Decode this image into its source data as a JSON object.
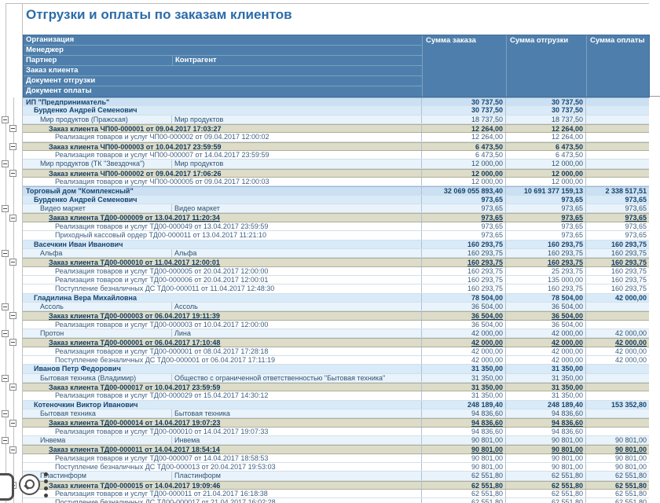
{
  "title": "Отгрузки и оплаты по заказам клиентов",
  "colors": {
    "header_bg": "#4E7FAC",
    "title_text": "#2B6CA9",
    "org_row_bg": "#CBE0F2",
    "manager_row_bg": "#D9EAF8",
    "partner_row_bg": "#E9F3FB",
    "order_row_bg": "#DCDCC8"
  },
  "header": {
    "rows": [
      {
        "label": "Организация"
      },
      {
        "label": "Менеджер"
      },
      {
        "label": "Партнер",
        "label2": "Контрагент"
      },
      {
        "label": "Заказ клиента"
      },
      {
        "label": "Документ отгрузки"
      },
      {
        "label": "Документ оплаты"
      }
    ],
    "value_columns": [
      "Сумма заказа",
      "Сумма отгрузки",
      "Сумма оплаты"
    ]
  },
  "overlay_icons": [
    "window-edge-button",
    "magnifier-button",
    "kebab-menu"
  ],
  "rows": [
    {
      "t": "org",
      "a": "ИП \"Предприниматель\"",
      "v": [
        "30 737,50",
        "30 737,50",
        ""
      ]
    },
    {
      "t": "mgr",
      "a": "Бурденко Андрей Семенович",
      "v": [
        "30 737,50",
        "30 737,50",
        ""
      ]
    },
    {
      "t": "prt",
      "a": "Мир продуктов (Пражская)",
      "b": "Мир продуктов",
      "v": [
        "18 737,50",
        "18 737,50",
        ""
      ]
    },
    {
      "t": "ord",
      "a": "Заказ клиента ЧП00-000001 от 09.04.2017 17:03:27",
      "v": [
        "12 264,00",
        "12 264,00",
        ""
      ]
    },
    {
      "t": "det",
      "a": "Реализация товаров и услуг ЧП00-000002 от 09.04.2017 12:00:02",
      "v": [
        "12 264,00",
        "12 264,00",
        ""
      ]
    },
    {
      "t": "ord",
      "a": "Заказ клиента ЧП00-000003 от 10.04.2017 23:59:59",
      "v": [
        "6 473,50",
        "6 473,50",
        ""
      ]
    },
    {
      "t": "det",
      "a": "Реализация товаров и услуг ЧП00-000007 от 14.04.2017 23:59:59",
      "v": [
        "6 473,50",
        "6 473,50",
        ""
      ]
    },
    {
      "t": "prt",
      "a": "Мир продуктов (ТК \"Звездочка\")",
      "b": "Мир продуктов",
      "v": [
        "12 000,00",
        "12 000,00",
        ""
      ]
    },
    {
      "t": "ord",
      "a": "Заказ клиента ЧП00-000002 от 09.04.2017 17:06:26",
      "v": [
        "12 000,00",
        "12 000,00",
        ""
      ]
    },
    {
      "t": "det",
      "a": "Реализация товаров и услуг ЧП00-000005 от 09.04.2017 12:00:03",
      "v": [
        "12 000,00",
        "12 000,00",
        ""
      ]
    },
    {
      "t": "org",
      "a": "Торговый дом \"Комплексный\"",
      "v": [
        "32 069 055 893,40",
        "10 691 377 159,13",
        "2 338 517,51"
      ]
    },
    {
      "t": "mgr",
      "a": "Бурденко Андрей Семенович",
      "v": [
        "973,65",
        "973,65",
        "973,65"
      ]
    },
    {
      "t": "prt",
      "a": "Видео маркет",
      "b": "Видео маркет",
      "v": [
        "973,65",
        "973,65",
        "973,65"
      ]
    },
    {
      "t": "ord",
      "a": "Заказ клиента ТД00-000009 от 13.04.2017 11:20:34",
      "v": [
        "973,65",
        "973,65",
        "973,65"
      ]
    },
    {
      "t": "det",
      "a": "Реализация товаров и услуг ТД00-000049 от 13.04.2017 23:59:59",
      "v": [
        "973,65",
        "973,65",
        "973,65"
      ]
    },
    {
      "t": "det",
      "a": "Приходный кассовый ордер ТД00-000011 от 13.04.2017 11:21:10",
      "v": [
        "973,65",
        "973,65",
        "973,65"
      ]
    },
    {
      "t": "mgr",
      "a": "Васечкин Иван Иванович",
      "v": [
        "160 293,75",
        "160 293,75",
        "160 293,75"
      ]
    },
    {
      "t": "prt",
      "a": "Альфа",
      "b": "Альфа",
      "v": [
        "160 293,75",
        "160 293,75",
        "160 293,75"
      ]
    },
    {
      "t": "ord",
      "a": "Заказ клиента ТД00-000010 от 11.04.2017 12:00:01",
      "v": [
        "160 293,75",
        "160 293,75",
        "160 293,75"
      ]
    },
    {
      "t": "det",
      "a": "Реализация товаров и услуг ТД00-000005 от 20.04.2017 12:00:00",
      "v": [
        "160 293,75",
        "25 293,75",
        "160 293,75"
      ]
    },
    {
      "t": "det",
      "a": "Реализация товаров и услуг ТД00-000006 от 20.04.2017 12:00:01",
      "v": [
        "160 293,75",
        "135 000,00",
        "160 293,75"
      ]
    },
    {
      "t": "det",
      "a": "Поступление безналичных ДС ТД00-000011 от 11.04.2017 12:48:30",
      "v": [
        "160 293,75",
        "160 293,75",
        "160 293,75"
      ]
    },
    {
      "t": "mgr",
      "a": "Гладилина Вера Михайловна",
      "v": [
        "78 504,00",
        "78 504,00",
        "42 000,00"
      ]
    },
    {
      "t": "prt",
      "a": "Ассоль",
      "b": "Ассоль",
      "v": [
        "36 504,00",
        "36 504,00",
        ""
      ]
    },
    {
      "t": "ord",
      "a": "Заказ клиента ТД00-000003 от 06.04.2017 19:11:39",
      "v": [
        "36 504,00",
        "36 504,00",
        ""
      ]
    },
    {
      "t": "det",
      "a": "Реализация товаров и услуг ТД00-000003 от 10.04.2017 12:00:00",
      "v": [
        "36 504,00",
        "36 504,00",
        ""
      ]
    },
    {
      "t": "prt",
      "a": "Протон",
      "b": "Лина",
      "v": [
        "42 000,00",
        "42 000,00",
        "42 000,00"
      ]
    },
    {
      "t": "ord",
      "a": "Заказ клиента ТД00-000001 от 06.04.2017 17:10:48",
      "v": [
        "42 000,00",
        "42 000,00",
        "42 000,00"
      ]
    },
    {
      "t": "det",
      "a": "Реализация товаров и услуг ТД00-000001 от 08.04.2017 17:28:18",
      "v": [
        "42 000,00",
        "42 000,00",
        "42 000,00"
      ]
    },
    {
      "t": "det",
      "a": "Поступление безналичных ДС ТД00-000001 от 06.04.2017 17:11:19",
      "v": [
        "42 000,00",
        "42 000,00",
        "42 000,00"
      ]
    },
    {
      "t": "mgr",
      "a": "Иванов Петр Федорович",
      "v": [
        "31 350,00",
        "31 350,00",
        ""
      ]
    },
    {
      "t": "prt",
      "a": "Бытовая техника (Владимир)",
      "b": "Общество с ограниченной ответственностью \"Бытовая техника\"",
      "v": [
        "31 350,00",
        "31 350,00",
        ""
      ]
    },
    {
      "t": "ord",
      "a": "Заказ клиента ТД00-000017 от 10.04.2017 23:59:59",
      "v": [
        "31 350,00",
        "31 350,00",
        ""
      ]
    },
    {
      "t": "det",
      "a": "Реализация товаров и услуг ТД00-000029 от 15.04.2017 14:30:12",
      "v": [
        "31 350,00",
        "31 350,00",
        ""
      ]
    },
    {
      "t": "mgr",
      "a": "Котеночкин Виктор Иванович",
      "v": [
        "248 189,40",
        "248 189,40",
        "153 352,80"
      ]
    },
    {
      "t": "prt",
      "a": "Бытовая техника",
      "b": "Бытовая техника",
      "v": [
        "94 836,60",
        "94 836,60",
        ""
      ]
    },
    {
      "t": "ord",
      "a": "Заказ клиента ТД00-000014 от 14.04.2017 19:07:23",
      "v": [
        "94 836,60",
        "94 836,60",
        ""
      ]
    },
    {
      "t": "det",
      "a": "Реализация товаров и услуг ТД00-000010 от 14.04.2017 19:07:33",
      "v": [
        "94 836,60",
        "94 836,60",
        ""
      ]
    },
    {
      "t": "prt",
      "a": "Инвема",
      "b": "Инвема",
      "v": [
        "90 801,00",
        "90 801,00",
        "90 801,00"
      ]
    },
    {
      "t": "ord",
      "a": "Заказ клиента ТД00-000011 от 14.04.2017 18:54:14",
      "v": [
        "90 801,00",
        "90 801,00",
        "90 801,00"
      ]
    },
    {
      "t": "det",
      "a": "Реализация товаров и услуг ТД00-000007 от 14.04.2017 18:58:53",
      "v": [
        "90 801,00",
        "90 801,00",
        "90 801,00"
      ]
    },
    {
      "t": "det",
      "a": "Поступление безналичных ДС ТД00-000013 от 20.04.2017 19:53:03",
      "v": [
        "90 801,00",
        "90 801,00",
        "90 801,00"
      ]
    },
    {
      "t": "prt",
      "a": "Пластинформ",
      "b": "Пластинформ",
      "v": [
        "62 551,80",
        "62 551,80",
        "62 551,80"
      ]
    },
    {
      "t": "ord",
      "a": "Заказ клиента ТД00-000015 от 14.04.2017 19:09:46",
      "v": [
        "62 551,80",
        "62 551,80",
        "62 551,80"
      ]
    },
    {
      "t": "det",
      "a": "Реализация товаров и услуг ТД00-000011 от 21.04.2017 16:18:38",
      "v": [
        "62 551,80",
        "62 551,80",
        "62 551,80"
      ]
    },
    {
      "t": "det",
      "a": "Поступление безналичных ДС ТД00-000017 от 21.04.2017 16:02:28",
      "v": [
        "62 551,80",
        "62 551,80",
        "62 551,80"
      ]
    }
  ]
}
